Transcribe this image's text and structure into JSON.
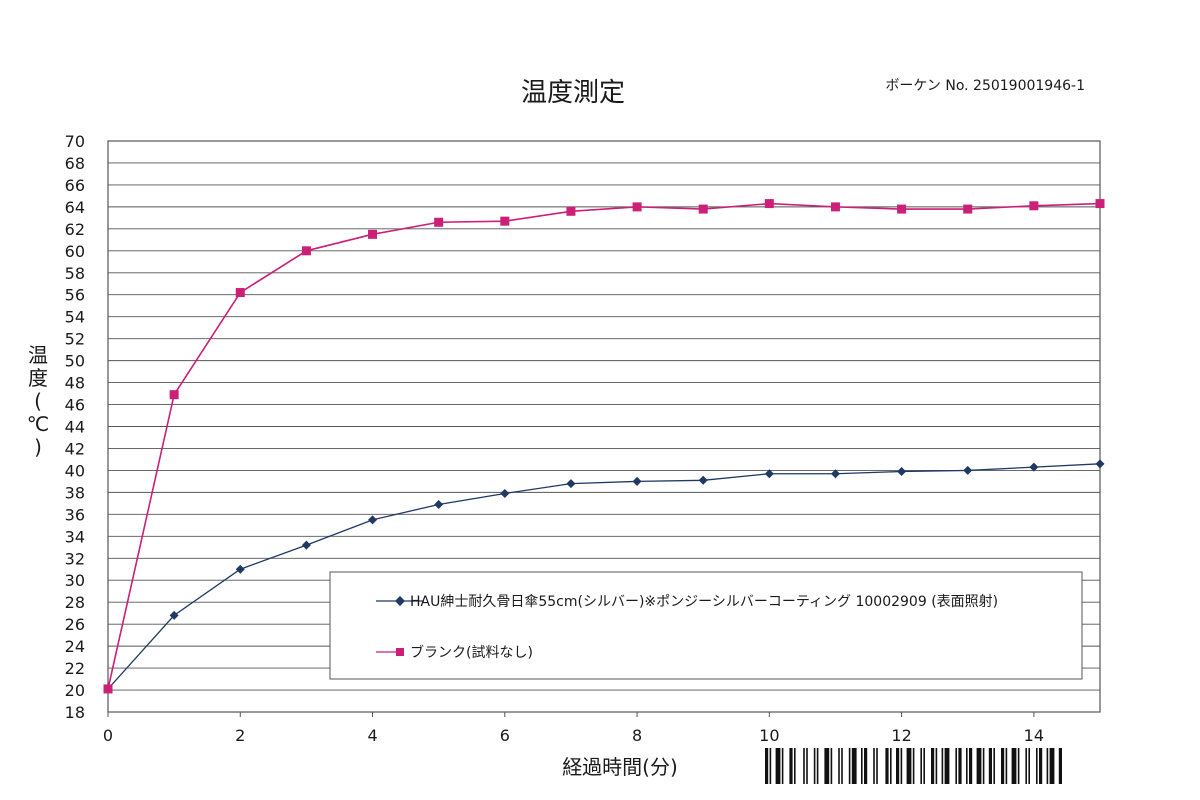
{
  "header": {
    "title": "温度測定",
    "report_number": "ボーケン No. 25019001946-1"
  },
  "chart_data": {
    "type": "line",
    "title": "温度測定",
    "xlabel": "経過時間(分)",
    "ylabel": "温度(℃)",
    "ylabel_chars": [
      "温",
      "度",
      "(",
      "℃",
      ")"
    ],
    "x": [
      0,
      1,
      2,
      3,
      4,
      5,
      6,
      7,
      8,
      9,
      10,
      11,
      12,
      13,
      14,
      15
    ],
    "xlim": [
      0,
      15
    ],
    "ylim": [
      18,
      70
    ],
    "x_ticks": [
      0,
      2,
      4,
      6,
      8,
      10,
      12,
      14
    ],
    "y_ticks": [
      18,
      20,
      22,
      24,
      26,
      28,
      30,
      32,
      34,
      36,
      38,
      40,
      42,
      44,
      46,
      48,
      50,
      52,
      54,
      56,
      58,
      60,
      62,
      64,
      66,
      68,
      70
    ],
    "grid": "horizontal",
    "legend_position": "inside-bottom-right",
    "series": [
      {
        "name": "HAU紳士耐久骨日傘55cm(シルバー)※ポンジーシルバーコーティング 10002909 (表面照射)",
        "marker": "diamond",
        "color": "#1f3864",
        "values": [
          20.1,
          26.8,
          31.0,
          33.2,
          35.5,
          36.9,
          37.9,
          38.8,
          39.0,
          39.1,
          39.7,
          39.7,
          39.9,
          40.0,
          40.3,
          40.6
        ]
      },
      {
        "name": "ブランク(試料なし)",
        "marker": "square",
        "color": "#cc1f77",
        "values": [
          20.1,
          46.9,
          56.2,
          60.0,
          61.5,
          62.6,
          62.7,
          63.6,
          64.0,
          63.8,
          64.3,
          64.0,
          63.8,
          63.8,
          64.1,
          64.3
        ]
      }
    ]
  },
  "colors": {
    "grid": "#555555",
    "plot_background": "#ffffff"
  }
}
